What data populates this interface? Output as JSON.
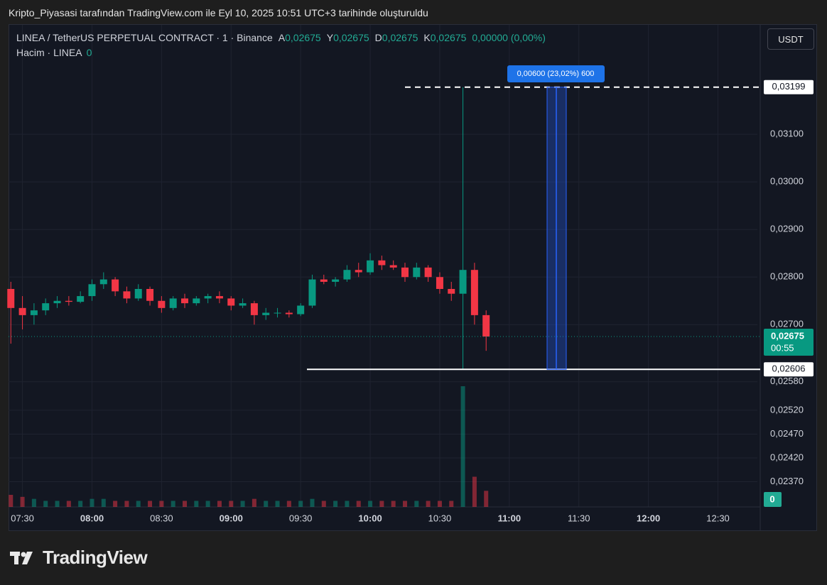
{
  "header": {
    "caption": "Kripto_Piyasasi tarafından TradingView.com ile Eyl 10, 2025 10:51 UTC+3 tarihinde oluşturuldu"
  },
  "chart_data": {
    "type": "candlestick",
    "title": "LINEA / TetherUS PERPETUAL CONTRACT · 1 · Binance",
    "ohlc_legend": [
      {
        "key": "A",
        "value": "0,02675"
      },
      {
        "key": "Y",
        "value": "0,02675"
      },
      {
        "key": "D",
        "value": "0,02675"
      },
      {
        "key": "K",
        "value": "0,02675"
      }
    ],
    "change": "0,00000 (0,00%)",
    "volume_title": "Hacim · LINEA",
    "volume_legend": "0",
    "currency": "USDT",
    "x": [
      "07:25",
      "07:30",
      "07:35",
      "07:40",
      "07:45",
      "07:50",
      "07:55",
      "08:00",
      "08:05",
      "08:10",
      "08:15",
      "08:20",
      "08:25",
      "08:30",
      "08:35",
      "08:40",
      "08:45",
      "08:50",
      "08:55",
      "09:00",
      "09:05",
      "09:10",
      "09:15",
      "09:20",
      "09:25",
      "09:30",
      "09:35",
      "09:40",
      "09:45",
      "09:50",
      "09:55",
      "10:00",
      "10:05",
      "10:10",
      "10:15",
      "10:20",
      "10:25",
      "10:30",
      "10:35",
      "10:40",
      "10:45",
      "10:50"
    ],
    "open": [
      0.02775,
      0.02735,
      0.0272,
      0.0273,
      0.02745,
      0.0275,
      0.02748,
      0.0276,
      0.02785,
      0.02795,
      0.0277,
      0.02755,
      0.02775,
      0.0275,
      0.02735,
      0.02755,
      0.02745,
      0.02755,
      0.0276,
      0.02755,
      0.0274,
      0.02745,
      0.0272,
      0.02725,
      0.02725,
      0.02722,
      0.0274,
      0.02795,
      0.0279,
      0.02795,
      0.02815,
      0.0281,
      0.02835,
      0.02825,
      0.0282,
      0.028,
      0.0282,
      0.028,
      0.02775,
      0.02765,
      0.02815,
      0.0272
    ],
    "high": [
      0.0279,
      0.0276,
      0.02745,
      0.02755,
      0.0276,
      0.0276,
      0.0277,
      0.02795,
      0.0281,
      0.028,
      0.0278,
      0.02785,
      0.0278,
      0.0276,
      0.0276,
      0.02765,
      0.0276,
      0.02765,
      0.0277,
      0.0276,
      0.02755,
      0.0275,
      0.02735,
      0.02735,
      0.0273,
      0.02745,
      0.02805,
      0.02805,
      0.028,
      0.02825,
      0.0283,
      0.0285,
      0.02845,
      0.02835,
      0.0283,
      0.0283,
      0.02825,
      0.0281,
      0.0279,
      0.03199,
      0.0283,
      0.0273
    ],
    "low": [
      0.0266,
      0.0269,
      0.027,
      0.0272,
      0.02735,
      0.0274,
      0.02745,
      0.0275,
      0.02775,
      0.0276,
      0.02745,
      0.0275,
      0.0274,
      0.02725,
      0.0273,
      0.02735,
      0.0274,
      0.02745,
      0.02745,
      0.0273,
      0.02735,
      0.027,
      0.0271,
      0.02715,
      0.02715,
      0.02718,
      0.02735,
      0.02785,
      0.0278,
      0.0279,
      0.028,
      0.02805,
      0.02815,
      0.02815,
      0.0279,
      0.02795,
      0.0279,
      0.02765,
      0.0275,
      0.02606,
      0.027,
      0.02645
    ],
    "close": [
      0.02735,
      0.0272,
      0.0273,
      0.02745,
      0.0275,
      0.02748,
      0.0276,
      0.02785,
      0.02795,
      0.0277,
      0.02755,
      0.02775,
      0.0275,
      0.02735,
      0.02755,
      0.02745,
      0.02755,
      0.0276,
      0.02755,
      0.0274,
      0.02745,
      0.0272,
      0.02725,
      0.02725,
      0.02722,
      0.0274,
      0.02795,
      0.0279,
      0.02795,
      0.02815,
      0.0281,
      0.02835,
      0.02825,
      0.0282,
      0.028,
      0.0282,
      0.028,
      0.02775,
      0.02765,
      0.02815,
      0.0272,
      0.02675
    ],
    "volume": [
      6,
      5,
      4,
      3,
      3,
      3,
      3,
      4,
      4,
      3,
      3,
      3,
      3,
      3,
      3,
      3,
      3,
      3,
      3,
      3,
      3,
      4,
      3,
      3,
      3,
      3,
      4,
      3,
      3,
      3,
      3,
      3,
      3,
      3,
      3,
      3,
      3,
      3,
      3,
      60,
      15,
      8
    ],
    "up_color": "#089981",
    "down_color": "#f23645",
    "xlim": [
      "07:24",
      "12:47"
    ],
    "xticks": [
      "07:30",
      "08:00",
      "08:30",
      "09:00",
      "09:30",
      "10:00",
      "10:30",
      "11:00",
      "11:30",
      "12:00",
      "12:30"
    ],
    "ylim": [
      0.02317,
      0.0333
    ],
    "yticks": [
      {
        "value": 0.031,
        "label": "0,03100"
      },
      {
        "value": 0.03,
        "label": "0,03000"
      },
      {
        "value": 0.029,
        "label": "0,02900"
      },
      {
        "value": 0.028,
        "label": "0,02800"
      },
      {
        "value": 0.027,
        "label": "0,02700"
      },
      {
        "value": 0.0258,
        "label": "0,02580"
      },
      {
        "value": 0.0252,
        "label": "0,02520"
      },
      {
        "value": 0.0247,
        "label": "0,02470"
      },
      {
        "value": 0.0242,
        "label": "0,02420"
      },
      {
        "value": 0.0237,
        "label": "0,02370"
      }
    ],
    "grid": true,
    "last_price": {
      "value": 0.02675,
      "label": "0,02675",
      "countdown": "00:55"
    },
    "volume_label": "0",
    "lines": [
      {
        "value": 0.03199,
        "label": "0,03199",
        "style": "dashed"
      },
      {
        "value": 0.02606,
        "label": "0,02606",
        "style": "solid"
      }
    ],
    "measure": {
      "label": "0,00600 (23,02%) 600"
    }
  },
  "footer": {
    "brand": "TradingView"
  }
}
